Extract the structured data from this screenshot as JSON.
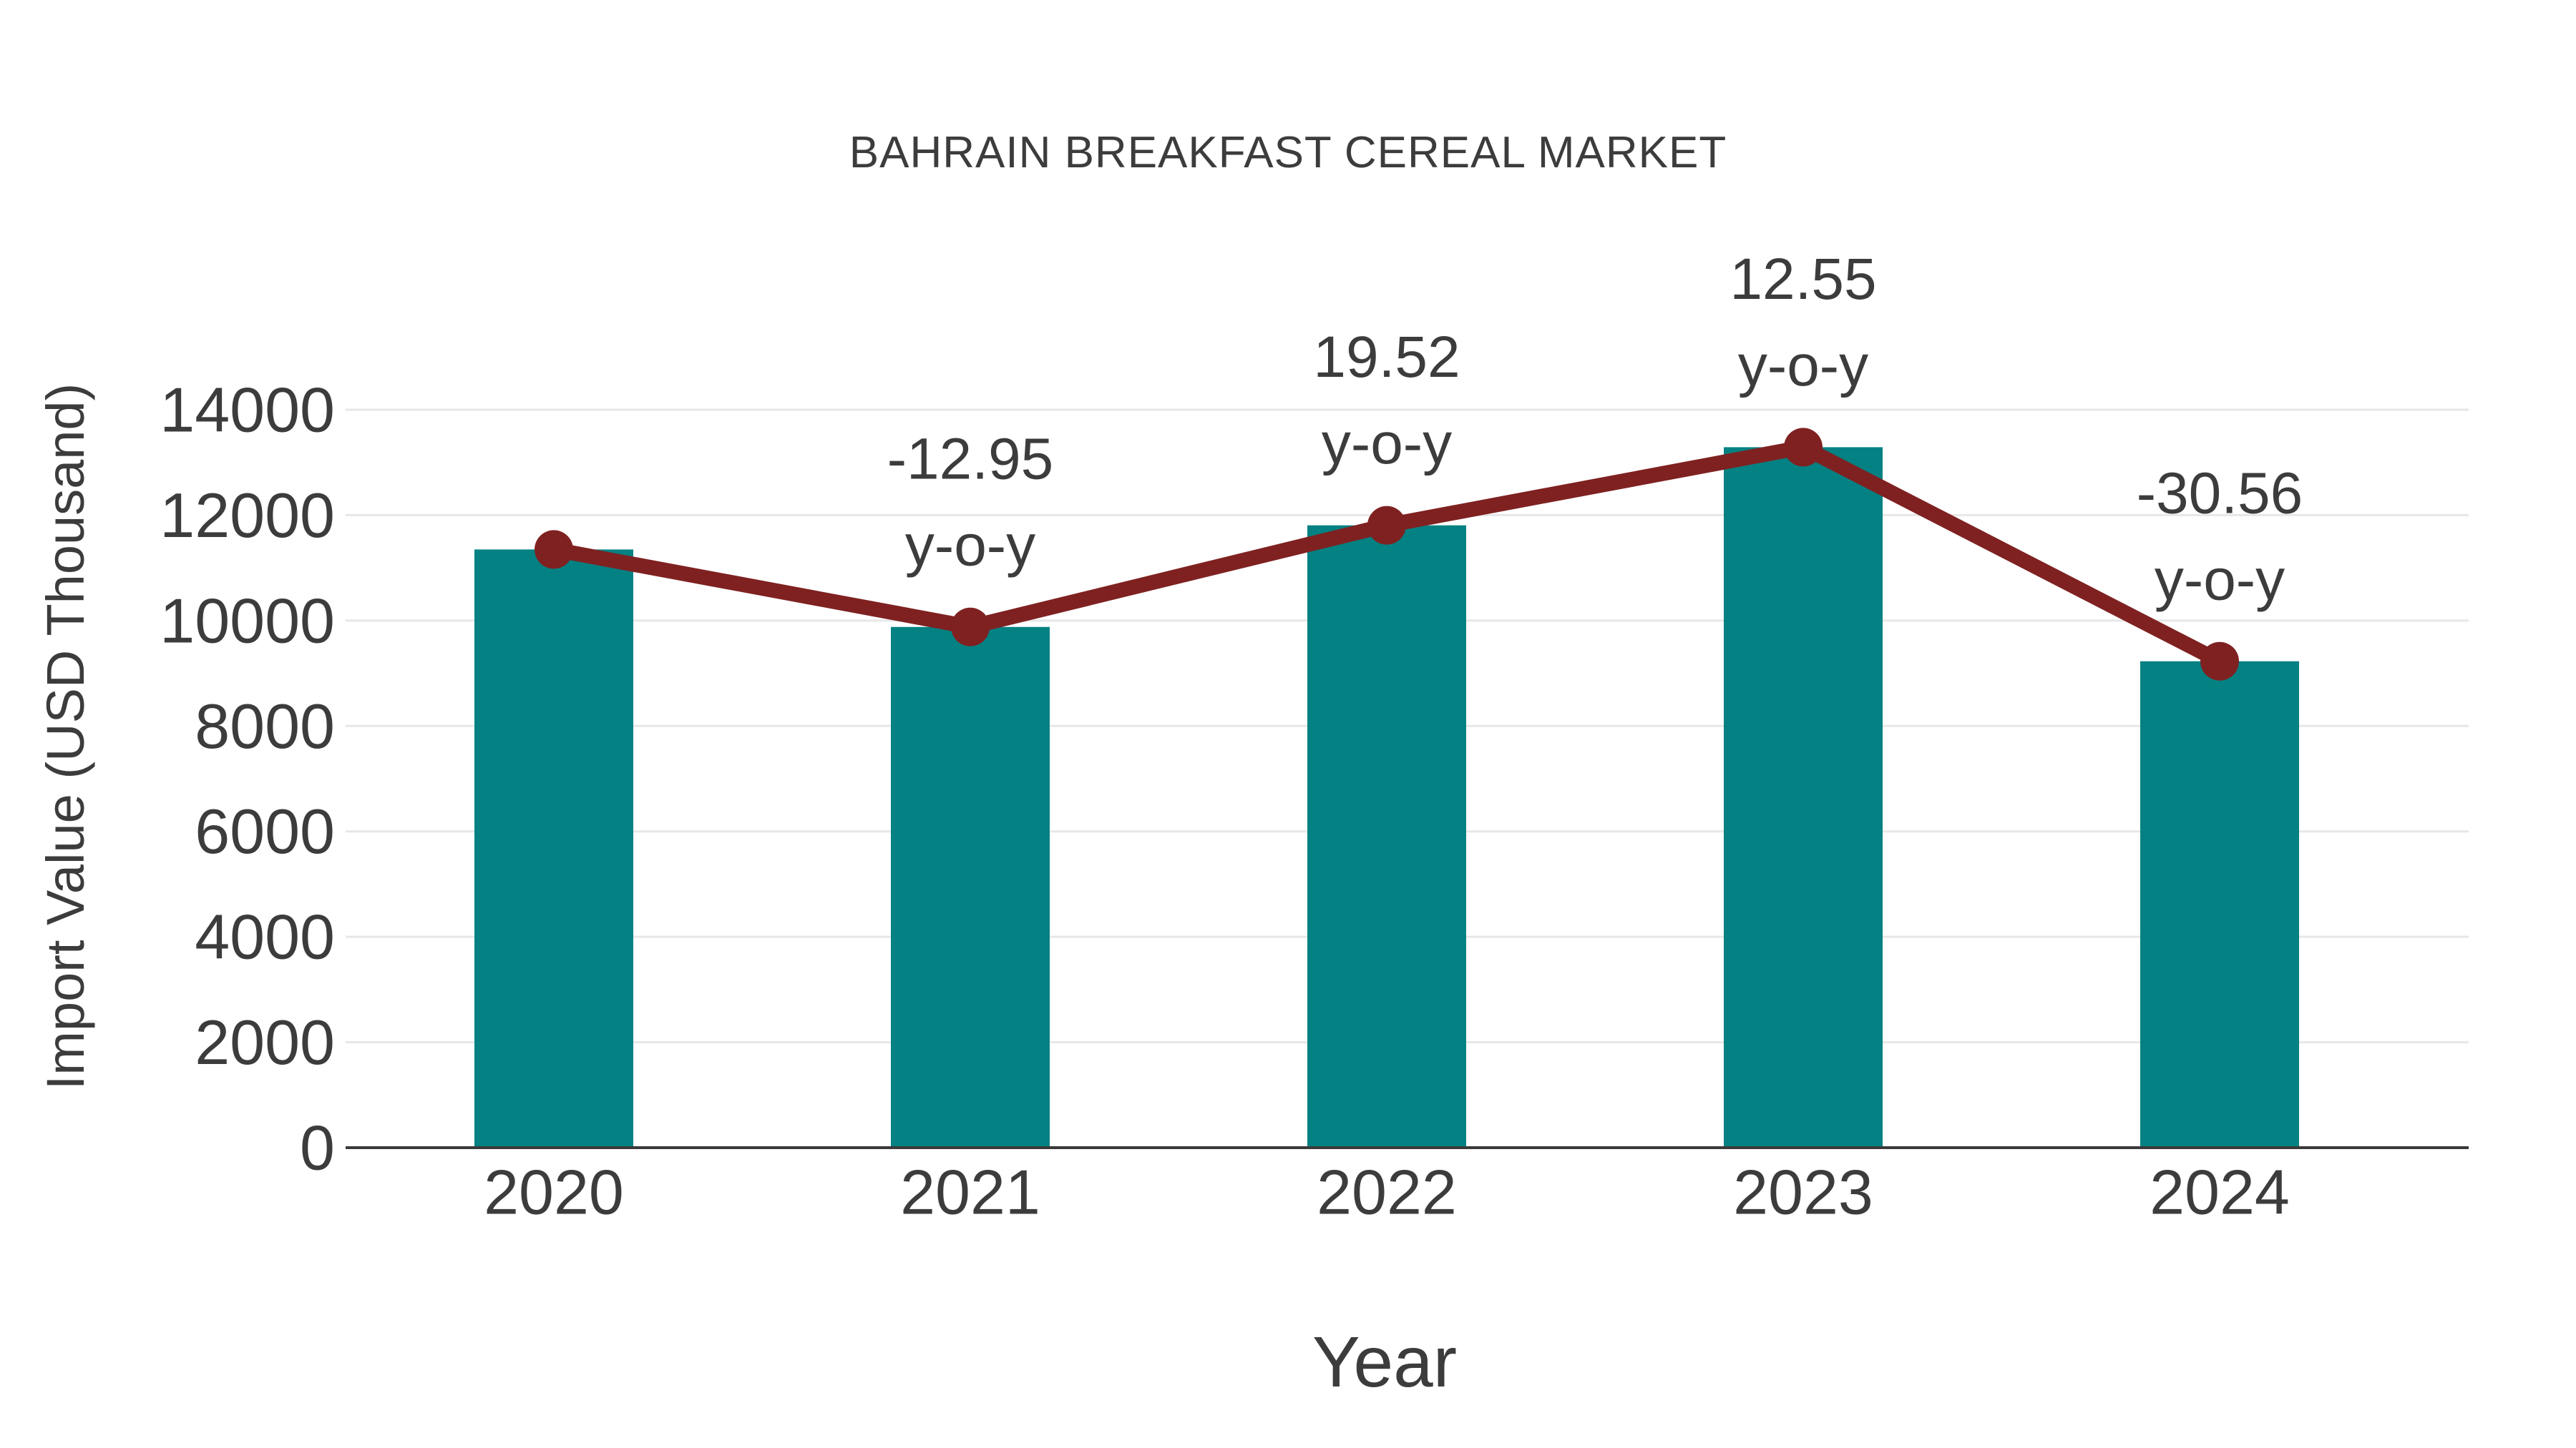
{
  "figure": {
    "title": "BAHRAIN BREAKFAST CEREAL MARKET",
    "x_axis_title": "Year",
    "y_axis_title": "Import Value (USD Thousand)"
  },
  "chart_data": {
    "type": "bar",
    "subtype": "combo-bar-line",
    "title": "BAHRAIN BREAKFAST CEREAL MARKET",
    "xlabel": "Year",
    "ylabel": "Import Value (USD Thousand)",
    "categories": [
      "2020",
      "2021",
      "2022",
      "2023",
      "2024"
    ],
    "series": [
      {
        "name": "Import Value bars",
        "type": "bar",
        "values": [
          11349,
          9879,
          11807,
          13289,
          9228
        ]
      },
      {
        "name": "Import Value trend line",
        "type": "line",
        "values": [
          11349,
          9879,
          11807,
          13289,
          9228
        ]
      }
    ],
    "annotations": [
      {
        "category": "2021",
        "line1": "-12.95",
        "line2": "y-o-y"
      },
      {
        "category": "2022",
        "line1": "19.52",
        "line2": "y-o-y"
      },
      {
        "category": "2023",
        "line1": "12.55",
        "line2": "y-o-y"
      },
      {
        "category": "2024",
        "line1": "-30.56",
        "line2": "y-o-y"
      }
    ],
    "ylim": [
      0,
      14000
    ],
    "yticks": [
      0,
      2000,
      4000,
      6000,
      8000,
      10000,
      12000,
      14000
    ],
    "grid": true,
    "legend_position": "none",
    "colors": {
      "bar": "#048183",
      "line": "#7F2121",
      "marker": "#7F2121",
      "text": "#3C3C3C",
      "gridline": "#E7E7E7",
      "axis_line": "#3A3A3A",
      "background": "#FFFFFF"
    }
  }
}
